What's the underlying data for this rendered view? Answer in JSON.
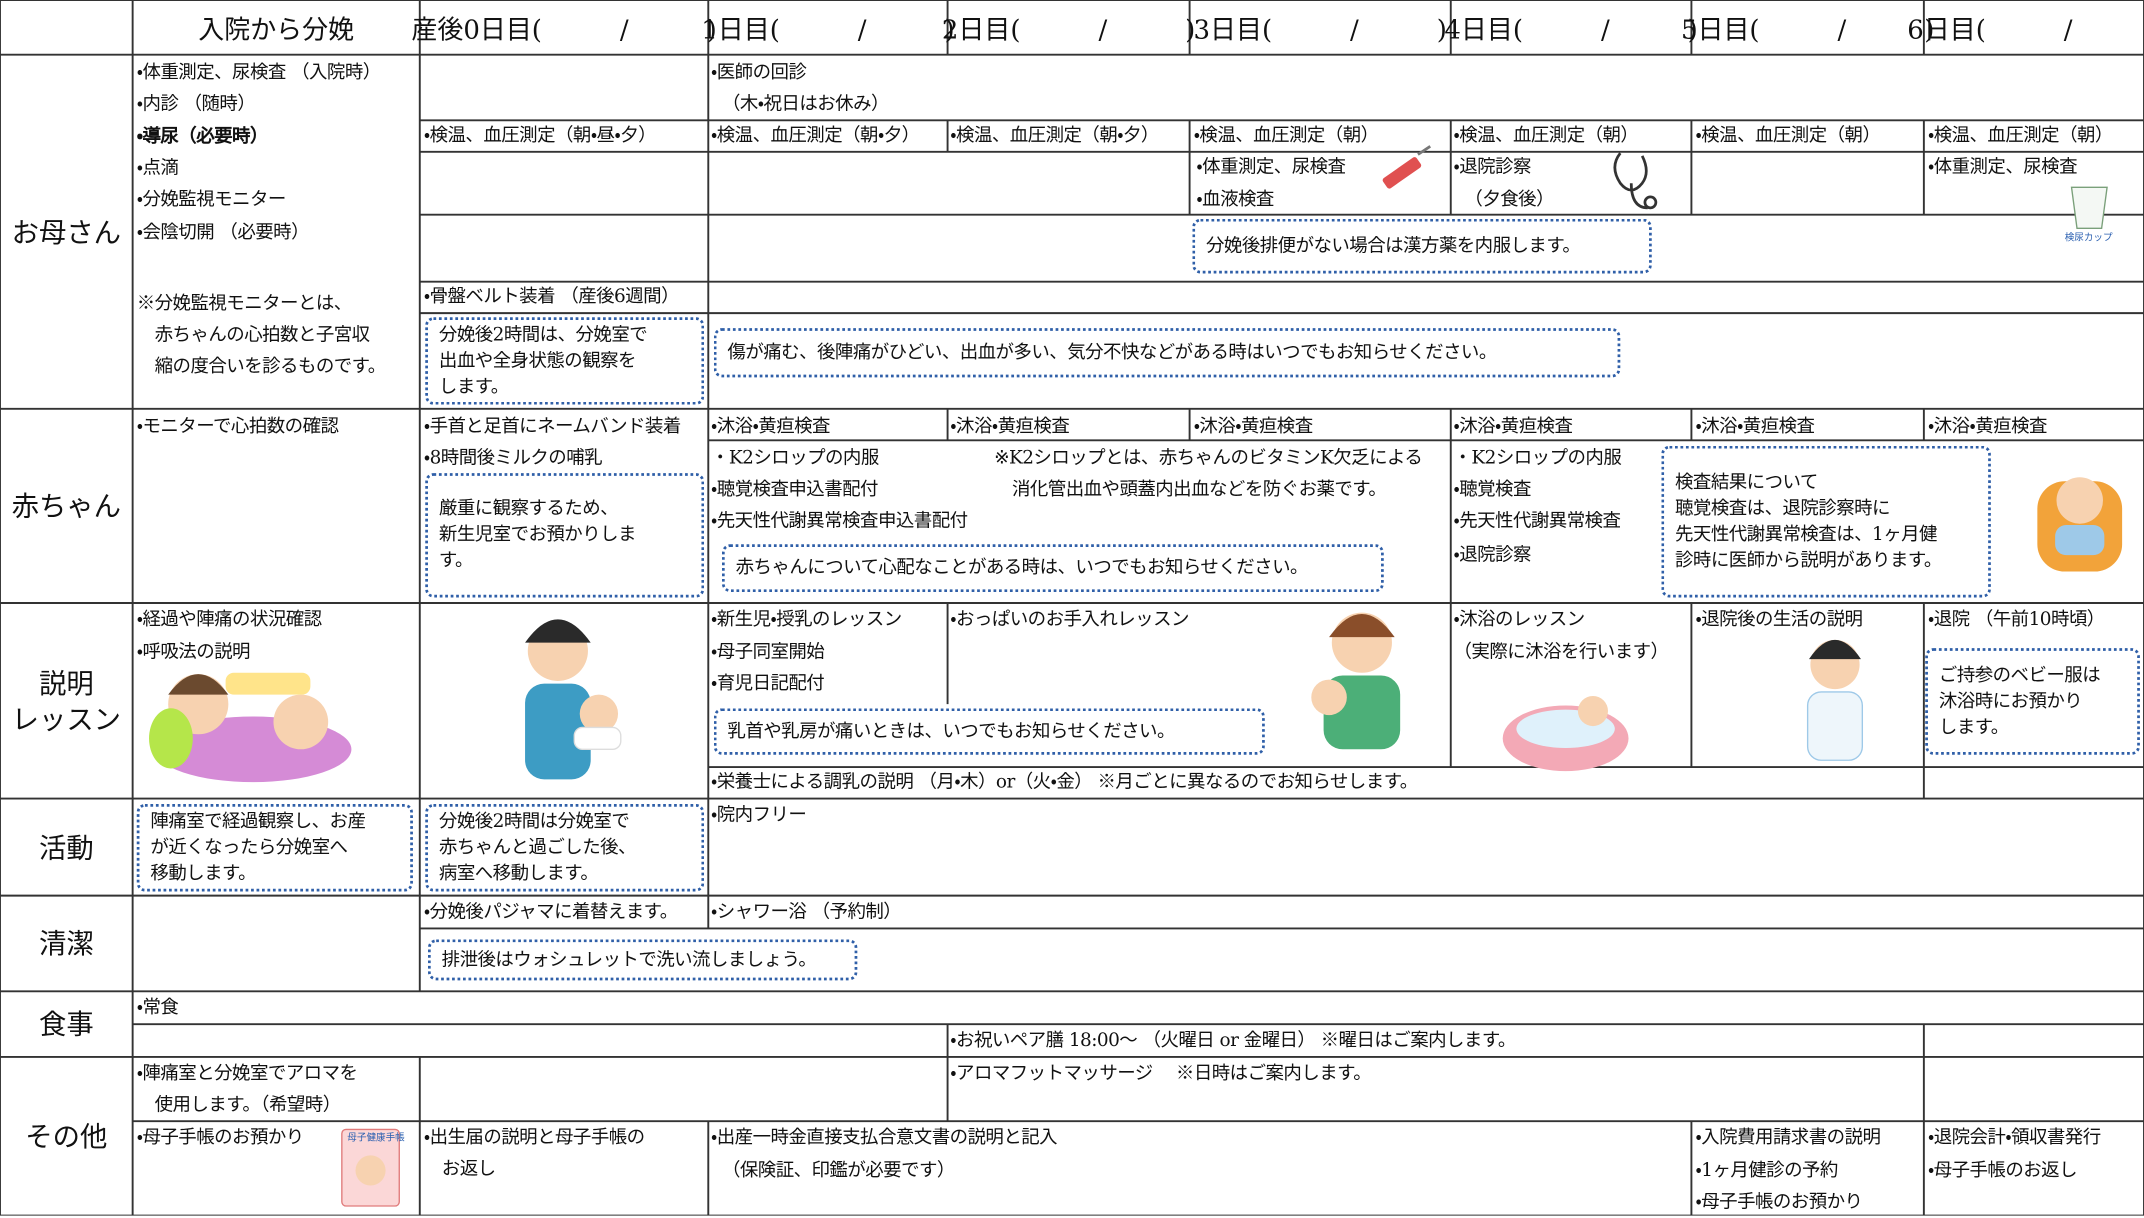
{
  "header": {
    "columns": [
      "入院から分娩",
      "産後0日目(　　　/　　　)",
      "1日目(　　　/　　　)",
      "2日目(　　　/　　　)",
      "3日目(　　　/　　　)",
      "4日目(　　　/　　　)",
      "5日目(　　　/　　　)",
      "6日目(　　　/　　　)"
    ]
  },
  "rows": [
    {
      "label": "お母さん",
      "items": [
        "・体重測定、尿検査 （入院時）",
        "・内診 （随時）",
        "・導尿（必要時）",
        "・点滴",
        "・分娩監視モニター",
        "・会陰切開 （必要時）",
        "※分娩監視モニターとは、\n　赤ちゃんの心拍数と子宮収\n　縮の度合いを診るものです。",
        "・医師の回診",
        "（木・祝日はお休み）",
        "・検温、血圧測定（朝・昼・夕）",
        "・検温、血圧測定（朝・夕）",
        "・検温、血圧測定（朝・夕）",
        "・検温、血圧測定（朝）",
        "・検温、血圧測定（朝）",
        "・検温、血圧測定（朝）",
        "・検温、血圧測定（朝）",
        "・体重測定、尿検査",
        "・血液検査",
        "・退院診察",
        "（夕食後）",
        "・体重測定、尿検査",
        "検尿カップ",
        "分娩後排便がない場合は漢方薬を内服します。",
        "・骨盤ベルト装着 （産後6週間）",
        "分娩後2時間は、分娩室で\n出血や全身状態の観察を\nします。",
        "傷が痛む、後陣痛がひどい、出血が多い、気分不快などがある時はいつでもお知らせください。"
      ]
    },
    {
      "label": "赤ちゃん",
      "items": [
        "・モニターで心拍数の確認",
        "・手首と足首にネームバンド装着",
        "・8時間後ミルクの哺乳",
        "厳重に観察するため、\n新生児室でお預かりしま\nす。",
        "・沐浴・黄疸検査",
        "・沐浴・黄疸検査",
        "・沐浴・黄疸検査",
        "・沐浴・黄疸検査",
        "・沐浴・黄疸検査",
        "・沐浴・黄疸検査",
        "・K2シロップの内服",
        "※K2シロップとは、赤ちゃんのビタミンK欠乏による\n　消化管出血や頭蓋内出血などを防ぐお薬です。",
        "・聴覚検査申込書配付",
        "・先天性代謝異常検査申込書配付",
        "赤ちゃんについて心配なことがある時は、いつでもお知らせください。",
        "・K2シロップの内服",
        "・聴覚検査",
        "・先天性代謝異常検査",
        "・退院診察",
        "検査結果について\n聴覚検査は、退院診察時に\n先天性代謝異常検査は、1ヶ月健\n診時に医師から説明があります。"
      ]
    },
    {
      "label": "説明\nレッスン",
      "items": [
        "・経過や陣痛の状況確認",
        "・呼吸法の説明",
        "・新生児・授乳のレッスン",
        "・母子同室開始",
        "・育児日記配付",
        "・おっぱいのお手入れレッスン",
        "乳首や乳房が痛いときは、いつでもお知らせください。",
        "・沐浴のレッスン",
        "（実際に沐浴を行います）",
        "・退院後の生活の説明",
        "・退院 （午前10時頃）",
        "ご持参のベビー服は\n沐浴時にお預かり\nします。",
        "・栄養士による調乳の説明 （月・木）or（火・金） ※月ごとに異なるのでお知らせします。"
      ]
    },
    {
      "label": "活動",
      "items": [
        "陣痛室で経過観察し、お産\nが近くなったら分娩室へ\n移動します。",
        "分娩後2時間は分娩室で\n赤ちゃんと過ごした後、\n病室へ移動します。",
        "・院内フリー"
      ]
    },
    {
      "label": "清潔",
      "items": [
        "・分娩後パジャマに着替えます。",
        "・シャワー浴 （予約制）",
        "排泄後はウォシュレットで洗い流しましょう。"
      ]
    },
    {
      "label": "食事",
      "items": [
        "・常食",
        "・お祝いペア膳 18:00～ （火曜日 or 金曜日） ※曜日はご案内します。"
      ]
    },
    {
      "label": "その他",
      "items": [
        "・陣痛室と分娩室でアロマを\n　使用します。（希望時）",
        "・アロマフットマッサージ　 ※日時はご案内します。",
        "・母子手帳のお預かり",
        "母子健康手帳",
        "・出生届の説明と母子手帳の\n　お返し",
        "・出産一時金直接支払合意文書の説明と記入",
        "（保険証、印鑑が必要です）",
        "・入院費用請求書の説明",
        "・1ヶ月健診の予約",
        "・母子手帳のお預かり",
        "・退院会計・領収書発行",
        "・母子手帳のお返し"
      ]
    }
  ]
}
